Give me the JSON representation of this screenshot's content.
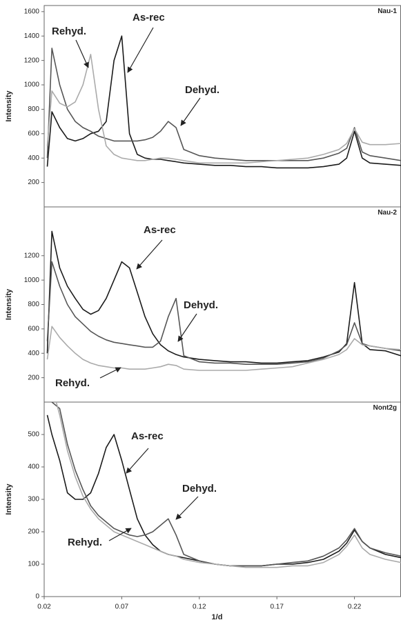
{
  "chart_data": [
    {
      "type": "line",
      "title": "Nau-1",
      "ylabel": "Intensity",
      "x": [
        0.022,
        0.025,
        0.03,
        0.035,
        0.04,
        0.045,
        0.05,
        0.055,
        0.06,
        0.065,
        0.07,
        0.075,
        0.08,
        0.085,
        0.09,
        0.095,
        0.1,
        0.105,
        0.11,
        0.12,
        0.13,
        0.14,
        0.15,
        0.16,
        0.17,
        0.18,
        0.19,
        0.2,
        0.21,
        0.215,
        0.22,
        0.225,
        0.23,
        0.24,
        0.25
      ],
      "xlim": [
        0.02,
        0.25
      ],
      "ylim": [
        0,
        1650
      ],
      "yticks": [
        200,
        400,
        600,
        800,
        1000,
        1200,
        1400,
        1600
      ],
      "series": [
        {
          "name": "As-rec",
          "color": "#1a1a1a",
          "values": [
            330,
            780,
            650,
            560,
            540,
            560,
            600,
            620,
            700,
            1200,
            1400,
            600,
            430,
            400,
            390,
            390,
            380,
            370,
            360,
            350,
            340,
            340,
            330,
            330,
            320,
            320,
            320,
            330,
            350,
            400,
            620,
            400,
            360,
            350,
            340
          ]
        },
        {
          "name": "Dehyd.",
          "color": "#555555",
          "values": [
            400,
            1300,
            1000,
            800,
            700,
            650,
            620,
            580,
            560,
            540,
            540,
            540,
            540,
            550,
            570,
            620,
            700,
            650,
            470,
            420,
            400,
            390,
            380,
            380,
            380,
            380,
            380,
            400,
            440,
            480,
            650,
            450,
            420,
            400,
            380
          ]
        },
        {
          "name": "Rehyd.",
          "color": "#aaaaaa",
          "values": [
            500,
            950,
            850,
            820,
            860,
            1000,
            1250,
            800,
            500,
            430,
            400,
            390,
            380,
            380,
            390,
            400,
            400,
            390,
            380,
            360,
            360,
            360,
            360,
            370,
            380,
            390,
            400,
            430,
            470,
            520,
            640,
            530,
            510,
            510,
            520
          ]
        }
      ]
    },
    {
      "type": "line",
      "title": "Nau-2",
      "ylabel": "Intensity",
      "x": [
        0.022,
        0.025,
        0.03,
        0.035,
        0.04,
        0.045,
        0.05,
        0.055,
        0.06,
        0.065,
        0.07,
        0.075,
        0.08,
        0.085,
        0.09,
        0.095,
        0.1,
        0.105,
        0.11,
        0.12,
        0.13,
        0.14,
        0.15,
        0.16,
        0.17,
        0.18,
        0.19,
        0.2,
        0.21,
        0.215,
        0.22,
        0.225,
        0.23,
        0.24,
        0.25
      ],
      "xlim": [
        0.02,
        0.25
      ],
      "ylim": [
        0,
        1600
      ],
      "yticks": [
        200,
        400,
        600,
        800,
        1000,
        1200
      ],
      "series": [
        {
          "name": "As-rec",
          "color": "#1a1a1a",
          "values": [
            400,
            1400,
            1100,
            950,
            850,
            760,
            720,
            750,
            850,
            1000,
            1150,
            1100,
            900,
            700,
            560,
            470,
            420,
            390,
            370,
            350,
            340,
            330,
            330,
            320,
            320,
            330,
            340,
            370,
            410,
            480,
            980,
            480,
            430,
            420,
            380
          ]
        },
        {
          "name": "Dehyd.",
          "color": "#555555",
          "values": [
            500,
            1150,
            950,
            800,
            700,
            640,
            580,
            540,
            510,
            490,
            480,
            470,
            460,
            450,
            450,
            500,
            700,
            850,
            380,
            330,
            320,
            320,
            310,
            310,
            310,
            320,
            330,
            360,
            420,
            470,
            650,
            480,
            460,
            440,
            420
          ]
        },
        {
          "name": "Rehyd.",
          "color": "#aaaaaa",
          "values": [
            350,
            620,
            530,
            460,
            400,
            350,
            320,
            300,
            290,
            280,
            280,
            270,
            270,
            270,
            280,
            290,
            310,
            300,
            270,
            260,
            260,
            260,
            260,
            270,
            280,
            290,
            320,
            350,
            390,
            430,
            520,
            470,
            460,
            440,
            430
          ]
        }
      ]
    },
    {
      "type": "line",
      "title": "Nont2g",
      "ylabel": "Intensity",
      "xlabel": "1/d",
      "x": [
        0.022,
        0.025,
        0.03,
        0.035,
        0.04,
        0.045,
        0.05,
        0.055,
        0.06,
        0.065,
        0.07,
        0.075,
        0.08,
        0.085,
        0.09,
        0.095,
        0.1,
        0.105,
        0.11,
        0.12,
        0.13,
        0.14,
        0.15,
        0.16,
        0.17,
        0.18,
        0.19,
        0.2,
        0.21,
        0.215,
        0.22,
        0.225,
        0.23,
        0.24,
        0.25
      ],
      "xlim": [
        0.02,
        0.25
      ],
      "xticks": [
        0.02,
        0.07,
        0.12,
        0.17,
        0.22
      ],
      "ylim": [
        0,
        600
      ],
      "yticks": [
        0,
        100,
        200,
        300,
        400,
        500
      ],
      "series": [
        {
          "name": "As-rec",
          "color": "#1a1a1a",
          "values": [
            560,
            500,
            420,
            320,
            300,
            300,
            320,
            380,
            460,
            500,
            420,
            330,
            240,
            190,
            160,
            140,
            130,
            125,
            120,
            110,
            100,
            95,
            95,
            95,
            100,
            100,
            105,
            115,
            140,
            165,
            205,
            170,
            150,
            130,
            120
          ]
        },
        {
          "name": "Dehyd.",
          "color": "#555555",
          "values": [
            650,
            600,
            580,
            470,
            390,
            330,
            280,
            250,
            230,
            210,
            200,
            190,
            185,
            190,
            200,
            220,
            240,
            190,
            130,
            110,
            100,
            95,
            95,
            95,
            100,
            105,
            110,
            125,
            150,
            175,
            210,
            170,
            150,
            135,
            125
          ]
        },
        {
          "name": "Rehyd.",
          "color": "#aaaaaa",
          "values": [
            700,
            650,
            560,
            450,
            370,
            310,
            270,
            240,
            220,
            200,
            190,
            180,
            170,
            160,
            150,
            140,
            130,
            125,
            115,
            105,
            100,
            95,
            90,
            90,
            90,
            95,
            95,
            105,
            130,
            155,
            190,
            150,
            130,
            115,
            105
          ]
        }
      ]
    }
  ]
}
